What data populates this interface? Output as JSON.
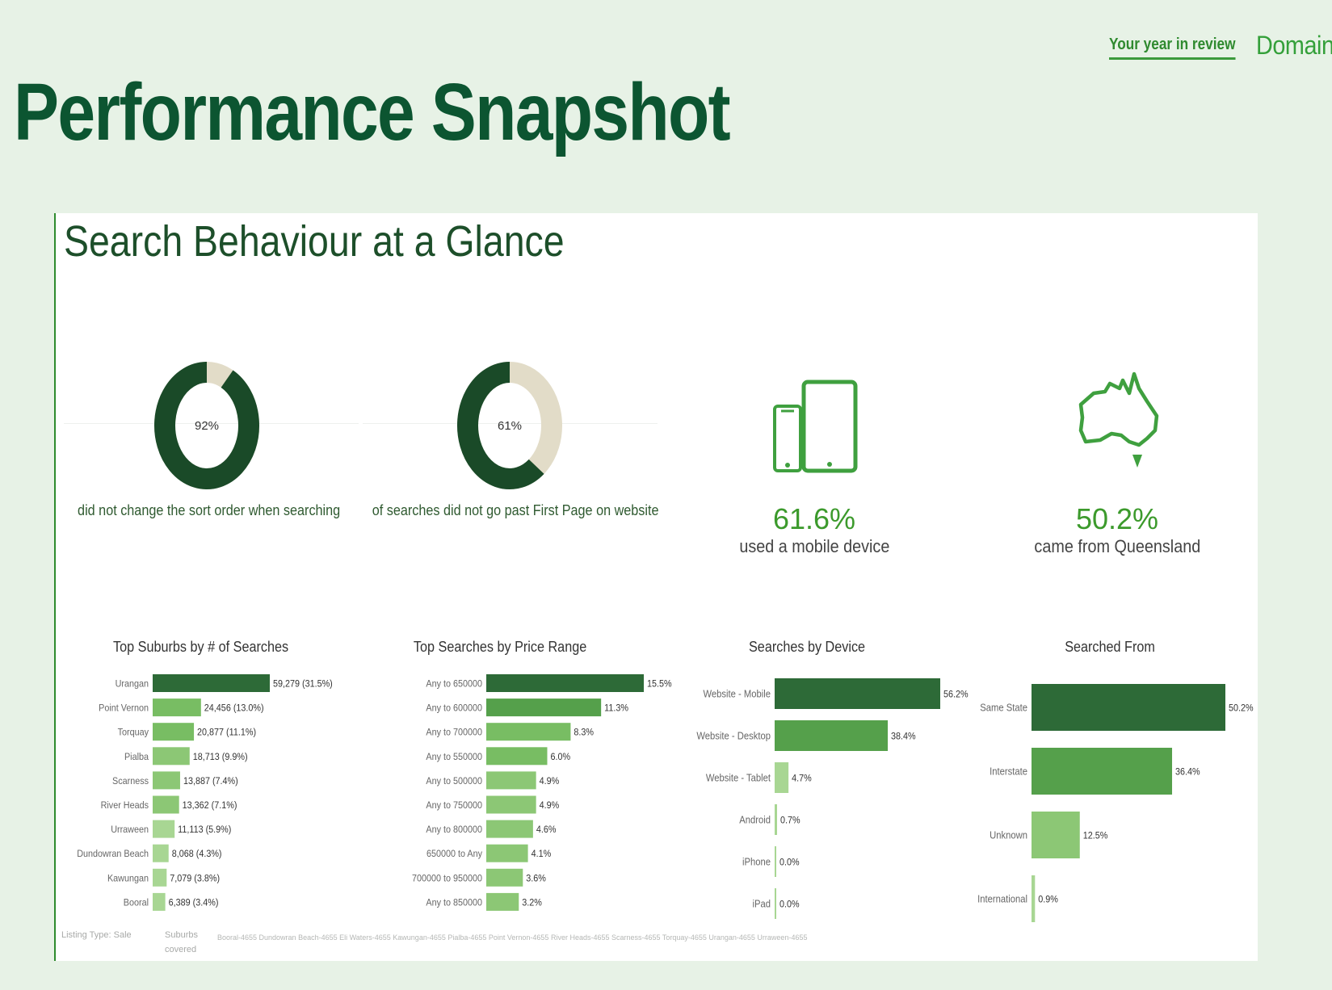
{
  "nav": {
    "link_label": "Your year in review",
    "brand": "Domain"
  },
  "page_title": "Performance Snapshot",
  "panel": {
    "title": "Search Behaviour at a Glance",
    "donuts": [
      {
        "value": 92,
        "label": "92%",
        "caption": "did not change the sort order when searching"
      },
      {
        "value": 61,
        "label": "61%",
        "caption": "of searches did not go past First Page on website"
      }
    ],
    "stats": [
      {
        "icon": "mobile-devices-icon",
        "value": "61.6%",
        "label": "used a mobile device"
      },
      {
        "icon": "australia-map-icon",
        "value": "50.2%",
        "label": "came from Queensland"
      }
    ],
    "footer": {
      "listing_type": "Listing Type: Sale",
      "suburbs_label_1": "Suburbs",
      "suburbs_label_2": "covered",
      "suburbs_list": "Booral-4655   Dundowran Beach-4655   Eli Waters-4655   Kawungan-4655   Pialba-4655   Point Vernon-4655   River Heads-4655   Scarness-4655   Torquay-4655   Urangan-4655   Urraween-4655"
    }
  },
  "colors": {
    "dark": "#1a4a28",
    "cream": "#e2dcc8",
    "accent": "#3c9a2c",
    "title": "#0c5531"
  },
  "chart_data": [
    {
      "type": "bar",
      "orientation": "horizontal",
      "title": "Top Suburbs by # of Searches",
      "categories": [
        "Urangan",
        "Point Vernon",
        "Torquay",
        "Pialba",
        "Scarness",
        "River Heads",
        "Urraween",
        "Dundowran Beach",
        "Kawungan",
        "Booral"
      ],
      "values": [
        59279,
        24456,
        20877,
        18713,
        13887,
        13362,
        11113,
        8068,
        7079,
        6389
      ],
      "labels": [
        "59,279 (31.5%)",
        "24,456 (13.0%)",
        "20,877 (11.1%)",
        "18,713 (9.9%)",
        "13,887 (7.4%)",
        "13,362 (7.1%)",
        "11,113 (5.9%)",
        "8,068 (4.3%)",
        "7,079 (3.8%)",
        "6,389 (3.4%)"
      ]
    },
    {
      "type": "bar",
      "orientation": "horizontal",
      "title": "Top Searches by Price Range",
      "categories": [
        "Any to 650000",
        "Any to 600000",
        "Any to 700000",
        "Any to 550000",
        "Any to 500000",
        "Any to 750000",
        "Any to 800000",
        "650000 to Any",
        "700000 to 950000",
        "Any to 850000"
      ],
      "values": [
        15.5,
        11.3,
        8.3,
        6.0,
        4.9,
        4.9,
        4.6,
        4.1,
        3.6,
        3.2
      ],
      "labels": [
        "15.5%",
        "11.3%",
        "8.3%",
        "6.0%",
        "4.9%",
        "4.9%",
        "4.6%",
        "4.1%",
        "3.6%",
        "3.2%"
      ]
    },
    {
      "type": "bar",
      "orientation": "horizontal",
      "title": "Searches by Device",
      "categories": [
        "Website - Mobile",
        "Website - Desktop",
        "Website - Tablet",
        "Android",
        "iPhone",
        "iPad"
      ],
      "values": [
        56.2,
        38.4,
        4.7,
        0.7,
        0.0,
        0.0
      ],
      "labels": [
        "56.2%",
        "38.4%",
        "4.7%",
        "0.7%",
        "0.0%",
        "0.0%"
      ]
    },
    {
      "type": "bar",
      "orientation": "horizontal",
      "title": "Searched From",
      "categories": [
        "Same State",
        "Interstate",
        "Unknown",
        "International"
      ],
      "values": [
        50.2,
        36.4,
        12.5,
        0.9
      ],
      "labels": [
        "50.2%",
        "36.4%",
        "12.5%",
        "0.9%"
      ]
    }
  ]
}
